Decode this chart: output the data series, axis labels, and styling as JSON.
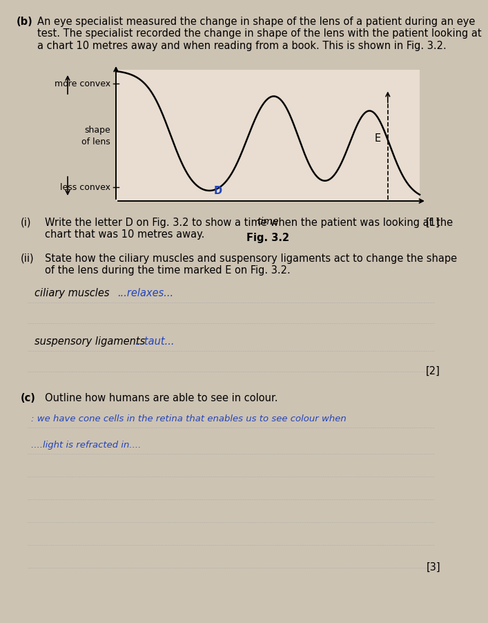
{
  "bg_color": "#cdc3b3",
  "graph_bg": "#e8ddd0",
  "fig_width": 6.42,
  "fig_height": 8.83,
  "title_b": "(b)",
  "title_text": "An eye specialist measured the change in shape of the lens of a patient during an eye\ntest. The specialist recorded the change in shape of the lens with the patient looking at\na chart 10 metres away and when reading from a book. This is shown in Fig. 3.2.",
  "graph_ylabel_top": "more convex",
  "graph_ylabel_mid": "shape\nof lens",
  "graph_ylabel_bot": "less convex",
  "graph_xlabel": "time",
  "graph_caption": "Fig. 3.2",
  "label_D": "D",
  "label_E": "E",
  "q_i_num": "(i)",
  "q_i_text": "Write the letter D on Fig. 3.2 to show a time when the patient was looking at the\nchart that was 10 metres away.",
  "q_i_mark": "[1]",
  "q_ii_num": "(ii)",
  "q_ii_text": "State how the ciliary muscles and suspensory ligaments act to change the shape\nof the lens during the time marked E on Fig. 3.2.",
  "ciliary_label": "ciliary muscles",
  "ciliary_answer": "...relaxes...",
  "suspensory_label": "suspensory ligaments",
  "suspensory_answer": "...taut...",
  "q_ii_mark": "[2]",
  "q_c_num": "(c)",
  "q_c_text": "Outline how humans are able to see in colour.",
  "c_line1": ": we have cone cells in the retina that enables us to see colour when",
  "c_line2": "....light is refracted in....",
  "q_c_mark": "[3]",
  "dot_color": "#aaaaaa",
  "blue_color": "#2244bb"
}
